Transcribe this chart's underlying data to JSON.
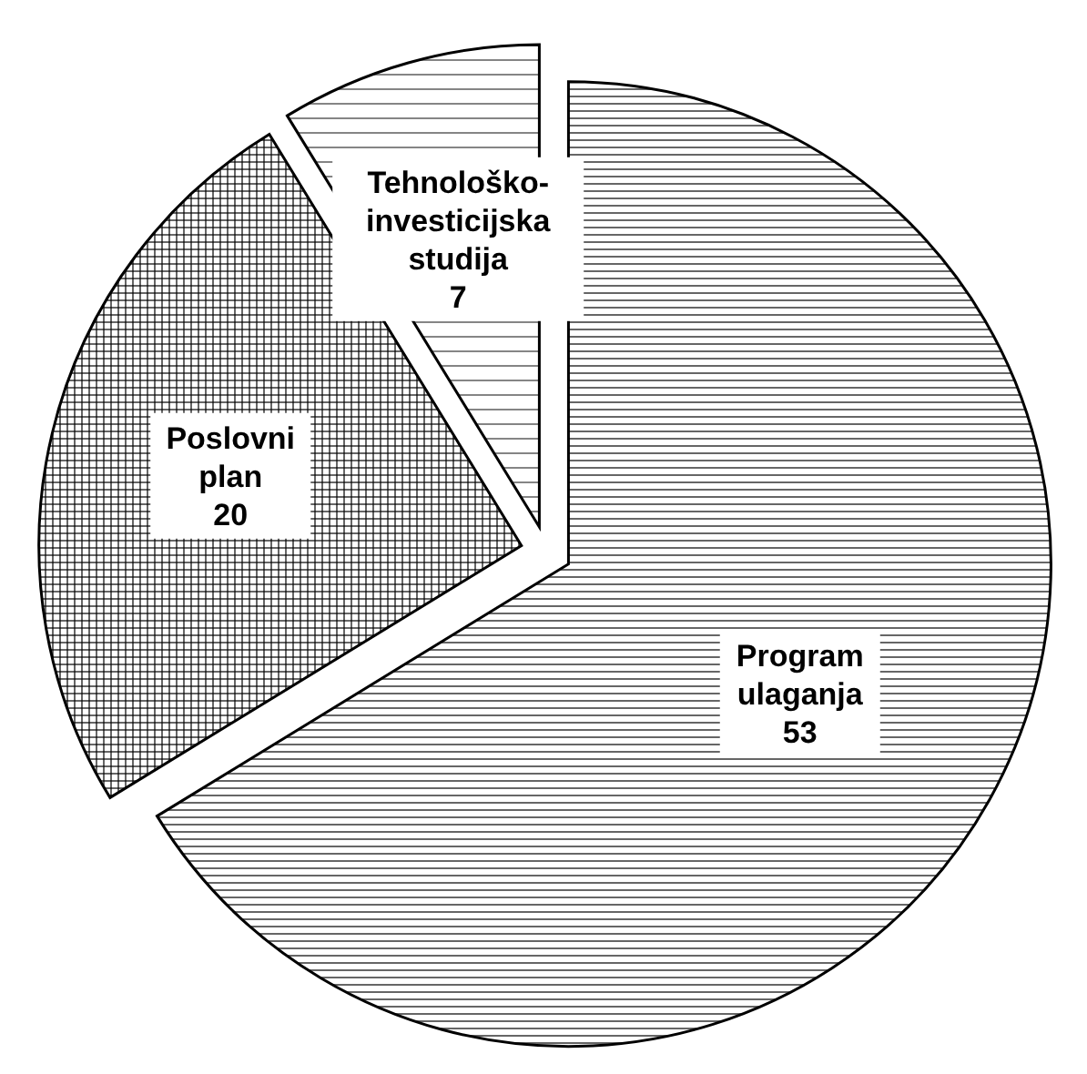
{
  "chart_data": {
    "type": "pie",
    "categories": [
      "Program ulaganja",
      "Poslovni plan",
      "Tehnološko-investicijska studija"
    ],
    "values": [
      53,
      20,
      7
    ],
    "colors": [
      "#000000",
      "#000000",
      "#000000"
    ],
    "data_labels": true,
    "legend": false
  }
}
